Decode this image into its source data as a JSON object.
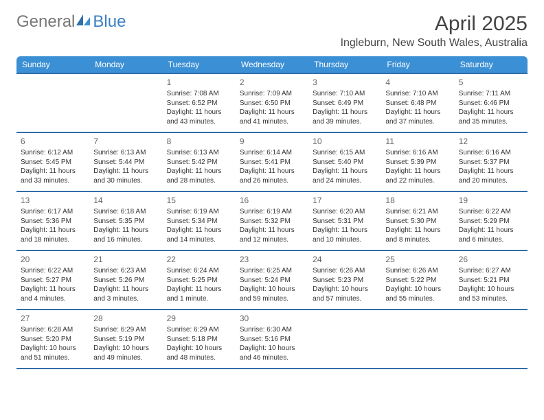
{
  "logo": {
    "text1": "General",
    "text2": "Blue"
  },
  "title": "April 2025",
  "location": "Ingleburn, New South Wales, Australia",
  "colors": {
    "header_bg": "#3b8fd4",
    "header_text": "#ffffff",
    "row_border": "#2f6ea8",
    "logo_blue": "#3b7fc4",
    "logo_gray": "#777777",
    "body_text": "#333333",
    "title_text": "#444444",
    "background": "#ffffff"
  },
  "fonts": {
    "title_size": 30,
    "location_size": 16,
    "dayhead_size": 12,
    "daynum_size": 12,
    "body_size": 10
  },
  "day_headers": [
    "Sunday",
    "Monday",
    "Tuesday",
    "Wednesday",
    "Thursday",
    "Friday",
    "Saturday"
  ],
  "weeks": [
    [
      {
        "n": "",
        "sr": "",
        "ss": "",
        "dl": ""
      },
      {
        "n": "",
        "sr": "",
        "ss": "",
        "dl": ""
      },
      {
        "n": "1",
        "sr": "Sunrise: 7:08 AM",
        "ss": "Sunset: 6:52 PM",
        "dl": "Daylight: 11 hours and 43 minutes."
      },
      {
        "n": "2",
        "sr": "Sunrise: 7:09 AM",
        "ss": "Sunset: 6:50 PM",
        "dl": "Daylight: 11 hours and 41 minutes."
      },
      {
        "n": "3",
        "sr": "Sunrise: 7:10 AM",
        "ss": "Sunset: 6:49 PM",
        "dl": "Daylight: 11 hours and 39 minutes."
      },
      {
        "n": "4",
        "sr": "Sunrise: 7:10 AM",
        "ss": "Sunset: 6:48 PM",
        "dl": "Daylight: 11 hours and 37 minutes."
      },
      {
        "n": "5",
        "sr": "Sunrise: 7:11 AM",
        "ss": "Sunset: 6:46 PM",
        "dl": "Daylight: 11 hours and 35 minutes."
      }
    ],
    [
      {
        "n": "6",
        "sr": "Sunrise: 6:12 AM",
        "ss": "Sunset: 5:45 PM",
        "dl": "Daylight: 11 hours and 33 minutes."
      },
      {
        "n": "7",
        "sr": "Sunrise: 6:13 AM",
        "ss": "Sunset: 5:44 PM",
        "dl": "Daylight: 11 hours and 30 minutes."
      },
      {
        "n": "8",
        "sr": "Sunrise: 6:13 AM",
        "ss": "Sunset: 5:42 PM",
        "dl": "Daylight: 11 hours and 28 minutes."
      },
      {
        "n": "9",
        "sr": "Sunrise: 6:14 AM",
        "ss": "Sunset: 5:41 PM",
        "dl": "Daylight: 11 hours and 26 minutes."
      },
      {
        "n": "10",
        "sr": "Sunrise: 6:15 AM",
        "ss": "Sunset: 5:40 PM",
        "dl": "Daylight: 11 hours and 24 minutes."
      },
      {
        "n": "11",
        "sr": "Sunrise: 6:16 AM",
        "ss": "Sunset: 5:39 PM",
        "dl": "Daylight: 11 hours and 22 minutes."
      },
      {
        "n": "12",
        "sr": "Sunrise: 6:16 AM",
        "ss": "Sunset: 5:37 PM",
        "dl": "Daylight: 11 hours and 20 minutes."
      }
    ],
    [
      {
        "n": "13",
        "sr": "Sunrise: 6:17 AM",
        "ss": "Sunset: 5:36 PM",
        "dl": "Daylight: 11 hours and 18 minutes."
      },
      {
        "n": "14",
        "sr": "Sunrise: 6:18 AM",
        "ss": "Sunset: 5:35 PM",
        "dl": "Daylight: 11 hours and 16 minutes."
      },
      {
        "n": "15",
        "sr": "Sunrise: 6:19 AM",
        "ss": "Sunset: 5:34 PM",
        "dl": "Daylight: 11 hours and 14 minutes."
      },
      {
        "n": "16",
        "sr": "Sunrise: 6:19 AM",
        "ss": "Sunset: 5:32 PM",
        "dl": "Daylight: 11 hours and 12 minutes."
      },
      {
        "n": "17",
        "sr": "Sunrise: 6:20 AM",
        "ss": "Sunset: 5:31 PM",
        "dl": "Daylight: 11 hours and 10 minutes."
      },
      {
        "n": "18",
        "sr": "Sunrise: 6:21 AM",
        "ss": "Sunset: 5:30 PM",
        "dl": "Daylight: 11 hours and 8 minutes."
      },
      {
        "n": "19",
        "sr": "Sunrise: 6:22 AM",
        "ss": "Sunset: 5:29 PM",
        "dl": "Daylight: 11 hours and 6 minutes."
      }
    ],
    [
      {
        "n": "20",
        "sr": "Sunrise: 6:22 AM",
        "ss": "Sunset: 5:27 PM",
        "dl": "Daylight: 11 hours and 4 minutes."
      },
      {
        "n": "21",
        "sr": "Sunrise: 6:23 AM",
        "ss": "Sunset: 5:26 PM",
        "dl": "Daylight: 11 hours and 3 minutes."
      },
      {
        "n": "22",
        "sr": "Sunrise: 6:24 AM",
        "ss": "Sunset: 5:25 PM",
        "dl": "Daylight: 11 hours and 1 minute."
      },
      {
        "n": "23",
        "sr": "Sunrise: 6:25 AM",
        "ss": "Sunset: 5:24 PM",
        "dl": "Daylight: 10 hours and 59 minutes."
      },
      {
        "n": "24",
        "sr": "Sunrise: 6:26 AM",
        "ss": "Sunset: 5:23 PM",
        "dl": "Daylight: 10 hours and 57 minutes."
      },
      {
        "n": "25",
        "sr": "Sunrise: 6:26 AM",
        "ss": "Sunset: 5:22 PM",
        "dl": "Daylight: 10 hours and 55 minutes."
      },
      {
        "n": "26",
        "sr": "Sunrise: 6:27 AM",
        "ss": "Sunset: 5:21 PM",
        "dl": "Daylight: 10 hours and 53 minutes."
      }
    ],
    [
      {
        "n": "27",
        "sr": "Sunrise: 6:28 AM",
        "ss": "Sunset: 5:20 PM",
        "dl": "Daylight: 10 hours and 51 minutes."
      },
      {
        "n": "28",
        "sr": "Sunrise: 6:29 AM",
        "ss": "Sunset: 5:19 PM",
        "dl": "Daylight: 10 hours and 49 minutes."
      },
      {
        "n": "29",
        "sr": "Sunrise: 6:29 AM",
        "ss": "Sunset: 5:18 PM",
        "dl": "Daylight: 10 hours and 48 minutes."
      },
      {
        "n": "30",
        "sr": "Sunrise: 6:30 AM",
        "ss": "Sunset: 5:16 PM",
        "dl": "Daylight: 10 hours and 46 minutes."
      },
      {
        "n": "",
        "sr": "",
        "ss": "",
        "dl": ""
      },
      {
        "n": "",
        "sr": "",
        "ss": "",
        "dl": ""
      },
      {
        "n": "",
        "sr": "",
        "ss": "",
        "dl": ""
      }
    ]
  ]
}
